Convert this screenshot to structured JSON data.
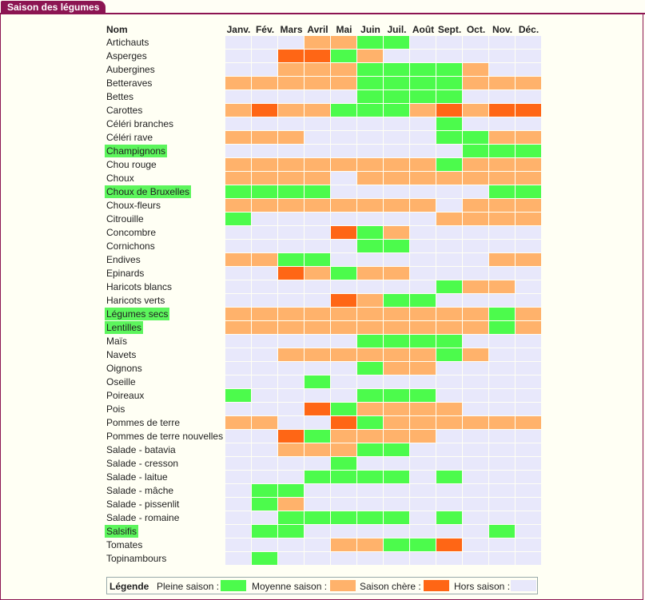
{
  "title": "Saison des légumes",
  "header_name": "Nom",
  "months": [
    "Janv.",
    "Fév.",
    "Mars",
    "Avril",
    "Mai",
    "Juin",
    "Juil.",
    "Août",
    "Sept.",
    "Oct.",
    "Nov.",
    "Déc."
  ],
  "colors": {
    "P": "#4cfb4c",
    "M": "#ffb26b",
    "C": "#ff6615",
    "H": "#e8e8fb"
  },
  "legend": {
    "title": "Légende",
    "items": [
      {
        "label": "Pleine saison :",
        "key": "P"
      },
      {
        "label": "Moyenne saison :",
        "key": "M"
      },
      {
        "label": "Saison chère :",
        "key": "C"
      },
      {
        "label": "Hors saison :",
        "key": "H"
      }
    ]
  },
  "rows": [
    {
      "name": "Artichauts",
      "hl": false,
      "s": "HHHMMPPHHHHH"
    },
    {
      "name": "Asperges",
      "hl": false,
      "s": "HHCCPMHHHHHH"
    },
    {
      "name": "Aubergines",
      "hl": false,
      "s": "HHMMMPPPPMHH"
    },
    {
      "name": "Betteraves",
      "hl": false,
      "s": "MMMMMPPPPMMM"
    },
    {
      "name": "Bettes",
      "hl": false,
      "s": "HHHHHPPPPHHH"
    },
    {
      "name": "Carottes",
      "hl": false,
      "s": "MCMMPPPMCMCC"
    },
    {
      "name": "Céléri branches",
      "hl": false,
      "s": "HHHHHHHHPHHH"
    },
    {
      "name": "Céléri rave",
      "hl": false,
      "s": "MMMHHHHHPPMM"
    },
    {
      "name": "Champignons",
      "hl": true,
      "s": "HHHHHHHHHPPP"
    },
    {
      "name": "Chou rouge",
      "hl": false,
      "s": "MMMMMMMMPMMM"
    },
    {
      "name": "Choux",
      "hl": false,
      "s": "MMMMHMMMMMMM"
    },
    {
      "name": "Choux de Bruxelles",
      "hl": true,
      "s": "PPPPHHHHHHPP"
    },
    {
      "name": "Choux-fleurs",
      "hl": false,
      "s": "MMMMMMMMHMMM"
    },
    {
      "name": "Citrouille",
      "hl": false,
      "s": "PHHHHHHHMMMM"
    },
    {
      "name": "Concombre",
      "hl": false,
      "s": "HHHHCPMHHHHH"
    },
    {
      "name": "Cornichons",
      "hl": false,
      "s": "HHHHHPPHHHHH"
    },
    {
      "name": "Endives",
      "hl": false,
      "s": "MMPPHHHHHHMM"
    },
    {
      "name": "Epinards",
      "hl": false,
      "s": "HHCMPMMHHHHH"
    },
    {
      "name": "Haricots blancs",
      "hl": false,
      "s": "HHHHHHHHPMMH"
    },
    {
      "name": "Haricots verts",
      "hl": false,
      "s": "HHHHCMPPHHHH"
    },
    {
      "name": "Légumes secs",
      "hl": true,
      "s": "MMMMMMMMMMPM"
    },
    {
      "name": "Lentilles",
      "hl": true,
      "s": "MMMMMMMMMMPM"
    },
    {
      "name": "Maïs",
      "hl": false,
      "s": "HHHHHPPPPHHH"
    },
    {
      "name": "Navets",
      "hl": false,
      "s": "HHMMMMMMPMHH"
    },
    {
      "name": "Oignons",
      "hl": false,
      "s": "HHHHHPMMHHHH"
    },
    {
      "name": "Oseille",
      "hl": false,
      "s": "HHHPHHHHHHHH"
    },
    {
      "name": "Poireaux",
      "hl": false,
      "s": "PHHHHPPPHHHH"
    },
    {
      "name": "Pois",
      "hl": false,
      "s": "HHHCPMMMMHHH"
    },
    {
      "name": "Pommes de terre",
      "hl": false,
      "s": "MMHHCPMMMMMM"
    },
    {
      "name": "Pommes de terre nouvelles",
      "hl": false,
      "s": "HHCPMMMMHHHH"
    },
    {
      "name": "Salade - batavia",
      "hl": false,
      "s": "HHMMMPPHHHHH"
    },
    {
      "name": "Salade - cresson",
      "hl": false,
      "s": "HHHHPHHHHHHH"
    },
    {
      "name": "Salade - laitue",
      "hl": false,
      "s": "HHHPPPPHPHHH"
    },
    {
      "name": "Salade - mâche",
      "hl": false,
      "s": "HPPHHHHHHHHH"
    },
    {
      "name": "Salade - pissenlit",
      "hl": false,
      "s": "HPMHHHHHHHHH"
    },
    {
      "name": "Salade - romaine",
      "hl": false,
      "s": "HHPPPPPHPHHH"
    },
    {
      "name": "Salsifis",
      "hl": true,
      "s": "HPPHHHHHHHPH"
    },
    {
      "name": "Tomates",
      "hl": false,
      "s": "HHHHMMPPCHHH"
    },
    {
      "name": "Topinambours",
      "hl": false,
      "s": "HPHHHHHHHHHH"
    }
  ]
}
